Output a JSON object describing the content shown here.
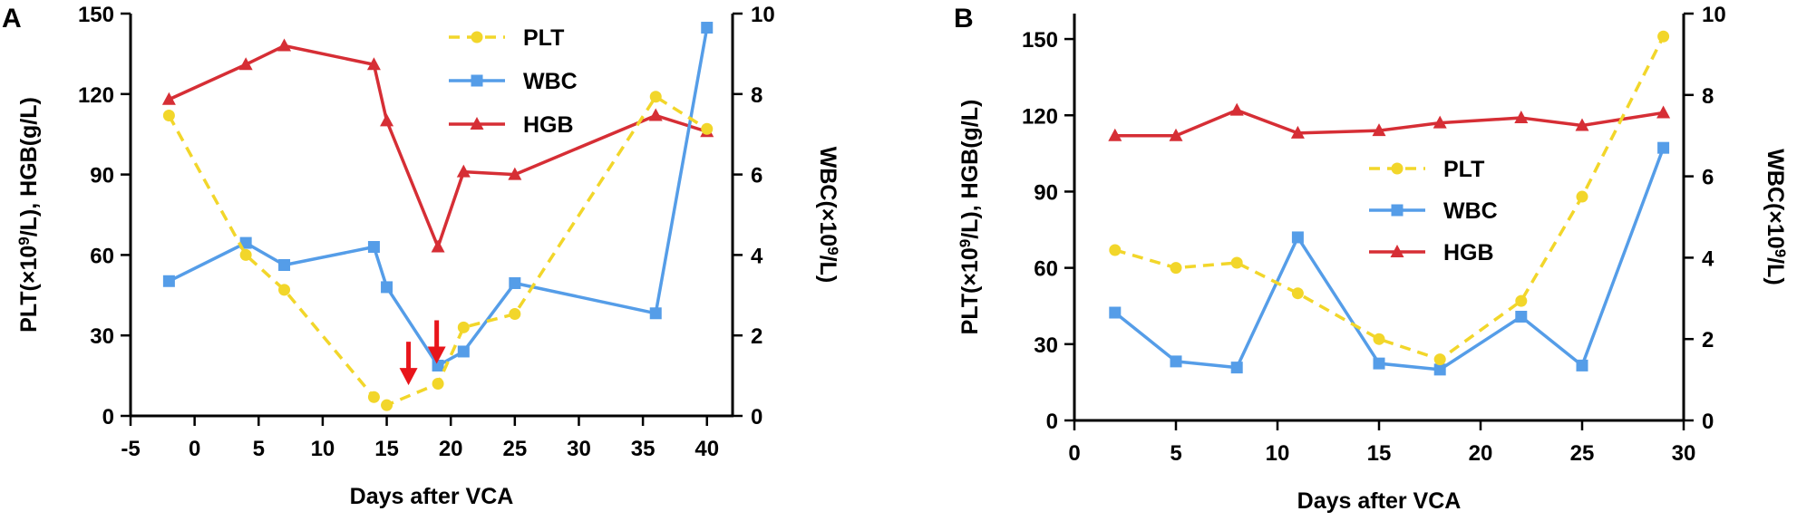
{
  "chart_data": [
    {
      "panel": "A",
      "type": "line",
      "xlabel": "Days after VCA",
      "ylabel_left": "PLT(×10⁹/L), HGB(g/L)",
      "ylabel_right": "WBC(×10⁹/L)",
      "xlim": [
        -5,
        42
      ],
      "xticks": [
        -5,
        0,
        5,
        10,
        15,
        20,
        25,
        30,
        35,
        40
      ],
      "ylim_left": [
        0,
        150
      ],
      "yticks_left": [
        0,
        30,
        60,
        90,
        120,
        150
      ],
      "ylim_right": [
        0,
        10
      ],
      "yticks_right": [
        0,
        2,
        4,
        6,
        8,
        10
      ],
      "legend": [
        "PLT",
        "WBC",
        "HGB"
      ],
      "legend_position": "top-right",
      "series": [
        {
          "name": "PLT",
          "axis": "left",
          "color": "#f2d62a",
          "style": "dashed",
          "marker": "circle",
          "x": [
            -2,
            4,
            7,
            14,
            15,
            19,
            21,
            25,
            36,
            40
          ],
          "y": [
            112,
            60,
            47,
            7,
            4,
            12,
            33,
            38,
            119,
            107
          ]
        },
        {
          "name": "WBC",
          "axis": "right",
          "color": "#559de8",
          "style": "solid",
          "marker": "square",
          "x": [
            -2,
            4,
            7,
            14,
            15,
            19,
            21,
            25,
            36,
            40
          ],
          "y": [
            3.35,
            4.3,
            3.75,
            4.2,
            3.2,
            1.25,
            1.6,
            3.3,
            2.55,
            9.65
          ]
        },
        {
          "name": "HGB",
          "axis": "left",
          "color": "#d62e35",
          "style": "solid",
          "marker": "triangle",
          "x": [
            -2,
            4,
            7,
            14,
            15,
            19,
            21,
            25,
            36,
            40
          ],
          "y": [
            118,
            131,
            138,
            131,
            110,
            63,
            91,
            90,
            112,
            106
          ]
        }
      ],
      "annotations": [
        {
          "type": "arrow",
          "direction": "down",
          "color": "#e8151b",
          "x": 16.7,
          "y": 4
        },
        {
          "type": "arrow",
          "direction": "down",
          "color": "#e8151b",
          "x": 18.9,
          "y": 12
        }
      ]
    },
    {
      "panel": "B",
      "type": "line",
      "xlabel": "Days after VCA",
      "ylabel_left": "PLT(×10⁹/L), HGB(g/L)",
      "ylabel_right": "WBC(×10⁹/L)",
      "xlim": [
        0,
        30
      ],
      "xticks": [
        0,
        5,
        10,
        15,
        20,
        25,
        30
      ],
      "ylim_left": [
        0,
        160
      ],
      "yticks_left": [
        0,
        30,
        60,
        90,
        120,
        150
      ],
      "ylim_right": [
        0,
        10
      ],
      "yticks_right": [
        0,
        2,
        4,
        6,
        8,
        10
      ],
      "legend": [
        "PLT",
        "WBC",
        "HGB"
      ],
      "legend_position": "center-right",
      "series": [
        {
          "name": "PLT",
          "axis": "left",
          "color": "#f2d62a",
          "style": "dashed",
          "marker": "circle",
          "x": [
            2,
            5,
            8,
            11,
            15,
            18,
            22,
            25,
            29
          ],
          "y": [
            67,
            60,
            62,
            50,
            32,
            24,
            47,
            88,
            151
          ]
        },
        {
          "name": "WBC",
          "axis": "right",
          "color": "#559de8",
          "style": "solid",
          "marker": "square",
          "x": [
            2,
            5,
            8,
            11,
            15,
            18,
            22,
            25,
            29
          ],
          "y": [
            2.65,
            1.45,
            1.3,
            4.5,
            1.4,
            1.25,
            2.55,
            1.35,
            6.7
          ]
        },
        {
          "name": "HGB",
          "axis": "left",
          "color": "#d62e35",
          "style": "solid",
          "marker": "triangle",
          "x": [
            2,
            5,
            8,
            11,
            15,
            18,
            22,
            25,
            29
          ],
          "y": [
            112,
            112,
            122,
            113,
            114,
            117,
            119,
            116,
            121
          ]
        }
      ],
      "annotations": []
    }
  ]
}
